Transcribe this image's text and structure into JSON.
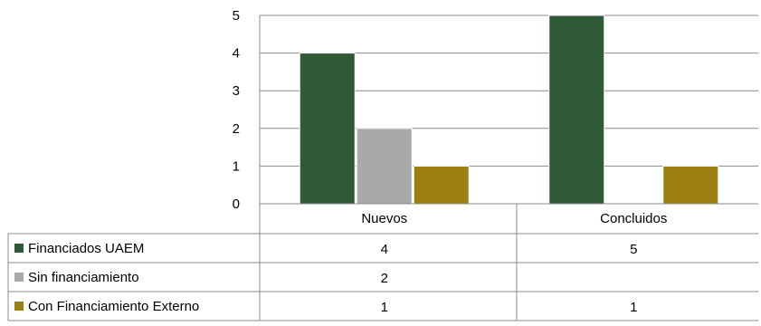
{
  "chart_data": {
    "type": "bar",
    "categories": [
      "Nuevos",
      "Concluidos"
    ],
    "series": [
      {
        "name": "Financiados UAEM",
        "values": [
          4,
          5
        ],
        "color": "#2e5a36"
      },
      {
        "name": "Sin financiamiento",
        "values": [
          2,
          null
        ],
        "color": "#a9a9a9"
      },
      {
        "name": "Con Financiamiento Externo",
        "values": [
          1,
          1
        ],
        "color": "#9c8012"
      }
    ],
    "ylim": [
      0,
      5
    ],
    "yticks": [
      0,
      1,
      2,
      3,
      4,
      5
    ],
    "grid": true,
    "legend": "data-table",
    "data_table": true
  }
}
